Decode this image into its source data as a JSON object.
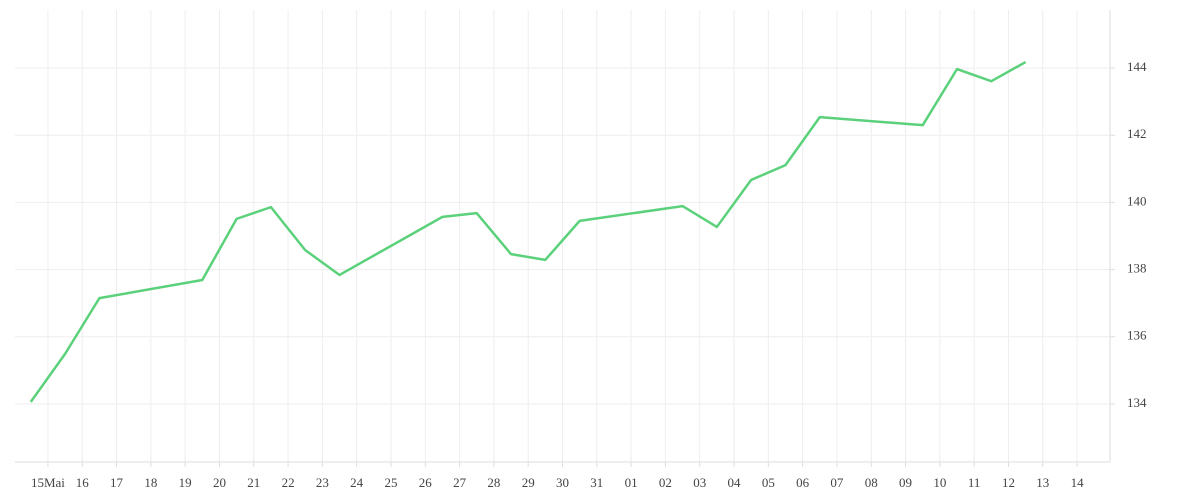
{
  "chart_data": {
    "type": "line",
    "x": [
      -0.5,
      0.5,
      1.5,
      4.5,
      5.5,
      6.5,
      7.5,
      8.5,
      11.5,
      12.5,
      13.5,
      14.5,
      15.5,
      18.5,
      19.5,
      20.5,
      21.5,
      22.5,
      25.5,
      26.5,
      27.5,
      28.5
    ],
    "series": [
      {
        "color": "#5ad17a",
        "values": [
          134.06,
          135.49,
          137.15,
          137.69,
          139.51,
          139.86,
          138.58,
          137.84,
          139.57,
          139.68,
          138.46,
          138.29,
          139.45,
          139.89,
          139.27,
          140.67,
          141.11,
          142.54,
          142.3,
          143.97,
          143.61,
          144.18
        ]
      }
    ],
    "xlim": [
      -0.96,
      30.96
    ],
    "xticks": [
      {
        "value": 0,
        "label": "15Mai"
      },
      16,
      17,
      18,
      19,
      20,
      21,
      22,
      23,
      24,
      25,
      26,
      27,
      28,
      29,
      30,
      31,
      {
        "value": 17,
        "label": "01"
      },
      {
        "value": 18,
        "label": "02"
      },
      {
        "value": 19,
        "label": "03"
      },
      {
        "value": 20,
        "label": "04"
      },
      {
        "value": 21,
        "label": "05"
      },
      {
        "value": 22,
        "label": "06"
      },
      {
        "value": 23,
        "label": "07"
      },
      {
        "value": 24,
        "label": "08"
      },
      {
        "value": 25,
        "label": "09"
      },
      {
        "value": 26,
        "label": "10"
      },
      {
        "value": 27,
        "label": "11"
      },
      {
        "value": 28,
        "label": "12"
      },
      {
        "value": 29,
        "label": "13"
      },
      {
        "value": 30,
        "label": "14"
      }
    ],
    "ylim": [
      132.27,
      145.73
    ],
    "yticks": [
      134,
      136,
      138,
      140,
      142,
      144
    ],
    "grid": true
  }
}
